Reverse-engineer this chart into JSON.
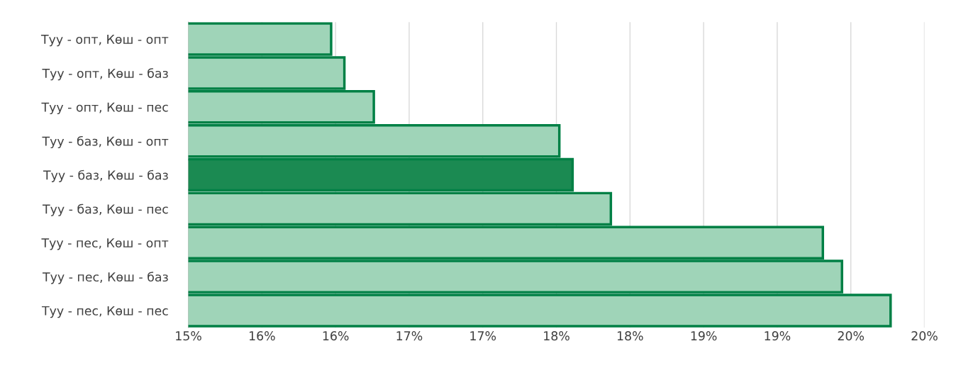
{
  "chart_data": {
    "type": "bar",
    "orientation": "horizontal",
    "categories": [
      "Туу - опт, Көш - опт",
      "Туу - опт, Көш - баз",
      "Туу - опт, Көш - пес",
      "Туу - баз, Көш - опт",
      "Туу - баз, Көш - баз",
      "Туу - баз, Көш - пес",
      "Туу - пес, Көш - опт",
      "Туу - пес, Көш - баз",
      "Туу - пес, Көш - пес"
    ],
    "values": [
      15.97,
      16.06,
      16.26,
      17.52,
      17.61,
      17.87,
      19.31,
      19.44,
      19.77
    ],
    "colors": [
      "#9fd4b8",
      "#9fd4b8",
      "#9fd4b8",
      "#9fd4b8",
      "#1b8a52",
      "#9fd4b8",
      "#9fd4b8",
      "#9fd4b8",
      "#9fd4b8"
    ],
    "xlim": [
      15,
      20
    ],
    "xticks": [
      {
        "value": 15,
        "label": "15%"
      },
      {
        "value": 15.5,
        "label": "16%"
      },
      {
        "value": 16,
        "label": "16%"
      },
      {
        "value": 16.5,
        "label": "17%"
      },
      {
        "value": 17,
        "label": "17%"
      },
      {
        "value": 17.5,
        "label": "18%"
      },
      {
        "value": 18,
        "label": "18%"
      },
      {
        "value": 18.5,
        "label": "19%"
      },
      {
        "value": 19,
        "label": "19%"
      },
      {
        "value": 19.5,
        "label": "20%"
      },
      {
        "value": 20,
        "label": "20%"
      }
    ],
    "grid": "x",
    "legend": false
  }
}
